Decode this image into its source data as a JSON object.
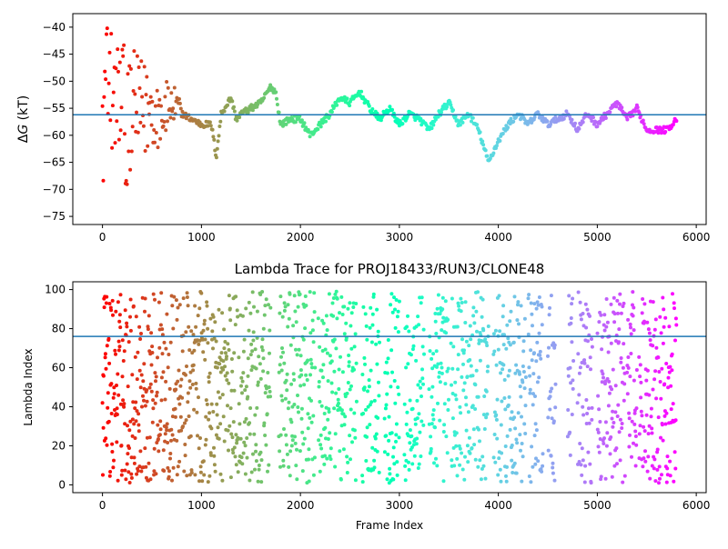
{
  "chart_data": [
    {
      "type": "scatter",
      "title": "",
      "xlabel": "",
      "ylabel_prefix": "Δ",
      "ylabel_var": "G",
      "ylabel_unit": " (kT)",
      "xlim": [
        -300,
        6100
      ],
      "ylim": [
        -76.5,
        -37.5
      ],
      "x_ticks": [
        0,
        1000,
        2000,
        3000,
        4000,
        5000,
        6000
      ],
      "y_ticks": [
        -75,
        -70,
        -65,
        -60,
        -55,
        -50,
        -45,
        -40
      ],
      "hline": -56.2,
      "hline_color": "#1f77b4",
      "grid": false,
      "color_map": "rainbow (frame index: red at 0 to violet at 5800)",
      "series": [
        {
          "x_start": 0,
          "x_end": 5800,
          "dx": 8,
          "anchors_x": [
            0,
            100,
            200,
            300,
            400,
            500,
            600,
            700,
            800,
            900,
            1000,
            1100,
            1150,
            1200,
            1300,
            1350,
            1400,
            1500,
            1600,
            1700,
            1750,
            1800,
            1900,
            2000,
            2100,
            2200,
            2300,
            2400,
            2500,
            2600,
            2700,
            2800,
            2900,
            3000,
            3100,
            3200,
            3300,
            3400,
            3500,
            3600,
            3700,
            3800,
            3900,
            4000,
            4100,
            4200,
            4300,
            4400,
            4500,
            4600,
            4700,
            4800,
            4900,
            5000,
            5100,
            5200,
            5300,
            5400,
            5500,
            5600,
            5700,
            5800
          ],
          "anchors_y": [
            -57,
            -56,
            -57,
            -56,
            -56,
            -55,
            -56,
            -54,
            -56,
            -57,
            -58,
            -58,
            -64,
            -56,
            -53,
            -57,
            -56,
            -55,
            -54,
            -51,
            -52,
            -58,
            -57,
            -57,
            -60,
            -58,
            -56,
            -53,
            -54,
            -52,
            -55,
            -57,
            -55,
            -58,
            -56,
            -57,
            -59,
            -56,
            -54,
            -58,
            -56,
            -59,
            -65,
            -61,
            -58,
            -56,
            -58,
            -56,
            -58,
            -57,
            -56,
            -59,
            -56,
            -58,
            -56,
            -54,
            -57,
            -55,
            -59,
            -59,
            -59,
            -57
          ],
          "early_scatter_until": 800
        }
      ]
    },
    {
      "type": "scatter",
      "title": "Lambda Trace for PROJ18433/RUN3/CLONE48",
      "xlabel": "Frame Index",
      "ylabel": "Lambda Index",
      "xlim": [
        -300,
        6100
      ],
      "ylim": [
        -4,
        104
      ],
      "x_ticks": [
        0,
        1000,
        2000,
        3000,
        4000,
        5000,
        6000
      ],
      "y_ticks": [
        0,
        20,
        40,
        60,
        80,
        100
      ],
      "hline": 76,
      "hline_color": "#1f77b4",
      "grid": false,
      "color_map": "rainbow (frame index: red at 0 to violet at 5800)",
      "series": [
        {
          "x_start": 0,
          "x_end": 5800,
          "dx": 3,
          "y_range": [
            1,
            99
          ],
          "active_ranges": [
            [
              0,
              1700
            ],
            [
              1780,
              2150
            ],
            [
              2180,
              2570
            ],
            [
              2620,
              2800
            ],
            [
              2850,
              3000
            ],
            [
              3050,
              3250
            ],
            [
              3300,
              3500
            ],
            [
              3520,
              3900
            ],
            [
              3950,
              4280
            ],
            [
              4300,
              4450
            ],
            [
              4500,
              4580
            ],
            [
              4700,
              4760
            ],
            [
              4800,
              4950
            ],
            [
              5000,
              5280
            ],
            [
              5300,
              5400
            ],
            [
              5420,
              5800
            ]
          ]
        }
      ]
    }
  ]
}
